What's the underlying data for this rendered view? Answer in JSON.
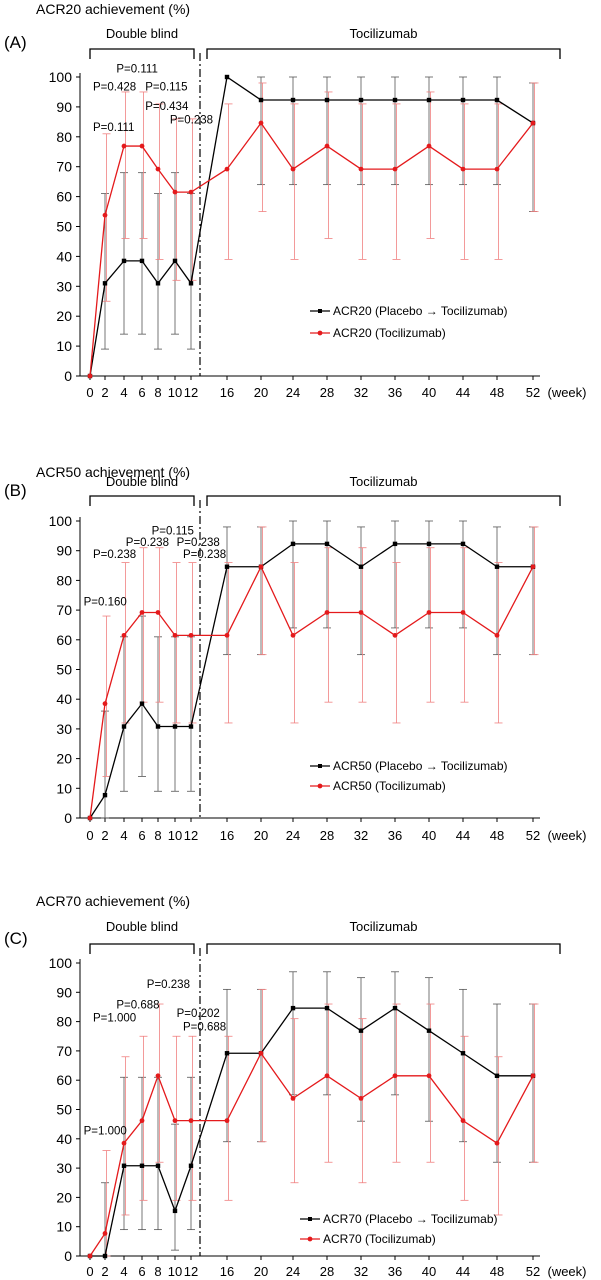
{
  "chart_data": [
    {
      "type": "line",
      "panel_label": "(A)",
      "ylabel": "ACR20 achievement (%)",
      "xunit": "(week)",
      "ylim": [
        0,
        100
      ],
      "yticks": [
        0,
        10,
        20,
        30,
        40,
        50,
        60,
        70,
        80,
        90,
        100
      ],
      "x": [
        0,
        2,
        4,
        6,
        8,
        10,
        12,
        16,
        20,
        24,
        28,
        32,
        36,
        40,
        44,
        48,
        52
      ],
      "xtick_labels": [
        "0",
        "2",
        "4",
        "6",
        "8",
        "10",
        "12",
        "16",
        "20",
        "24",
        "28",
        "32",
        "36",
        "40",
        "44",
        "48",
        "52"
      ],
      "phases": [
        {
          "label": "Double blind",
          "from": 0,
          "to": 12
        },
        {
          "label": "Tocilizumab",
          "from": 12,
          "to": 52
        }
      ],
      "series": [
        {
          "name": "ACR20 (Placebo → Tocilizumab)",
          "color": "#000000",
          "values": [
            0,
            31,
            38.5,
            38.5,
            31,
            38.5,
            31,
            100,
            92.3,
            92.3,
            92.3,
            92.3,
            92.3,
            92.3,
            92.3,
            92.3,
            84.6
          ],
          "err_low": [
            0,
            9,
            14,
            14,
            9,
            14,
            9,
            100,
            64,
            64,
            64,
            64,
            64,
            64,
            64,
            64,
            55
          ],
          "err_high": [
            0,
            61,
            68,
            68,
            61,
            68,
            61,
            100,
            100,
            100,
            100,
            100,
            100,
            100,
            100,
            100,
            98
          ]
        },
        {
          "name": "ACR20 (Tocilizumab)",
          "color": "#e41a1c",
          "values": [
            0,
            53.8,
            76.9,
            76.9,
            69.2,
            61.5,
            61.5,
            69.2,
            84.6,
            69.2,
            76.9,
            69.2,
            69.2,
            76.9,
            69.2,
            69.2,
            84.6
          ],
          "err_low": [
            0,
            25,
            46,
            46,
            39,
            32,
            32,
            39,
            55,
            39,
            46,
            39,
            39,
            46,
            39,
            39,
            55
          ],
          "err_high": [
            0,
            81,
            95,
            95,
            91,
            86,
            86,
            91,
            98,
            91,
            95,
            91,
            91,
            95,
            91,
            91,
            98
          ]
        }
      ],
      "pvalues": [
        {
          "text": "P=0.111",
          "x": 0.4,
          "y": 82
        },
        {
          "text": "P=0.428",
          "x": 0.4,
          "y": 95.5
        },
        {
          "text": "P=0.111",
          "x": 3.2,
          "y": 101.5
        },
        {
          "text": "P=0.115",
          "x": 6.4,
          "y": 95.5
        },
        {
          "text": "P=0.434",
          "x": 6.4,
          "y": 89
        },
        {
          "text": "P=0.238",
          "x": 9.4,
          "y": 84.5
        }
      ]
    },
    {
      "type": "line",
      "panel_label": "(B)",
      "ylabel": "ACR50 achievement (%)",
      "xunit": "(week)",
      "ylim": [
        0,
        100
      ],
      "yticks": [
        0,
        10,
        20,
        30,
        40,
        50,
        60,
        70,
        80,
        90,
        100
      ],
      "x": [
        0,
        2,
        4,
        6,
        8,
        10,
        12,
        16,
        20,
        24,
        28,
        32,
        36,
        40,
        44,
        48,
        52
      ],
      "xtick_labels": [
        "0",
        "2",
        "4",
        "6",
        "8",
        "10",
        "12",
        "16",
        "20",
        "24",
        "28",
        "32",
        "36",
        "40",
        "44",
        "48",
        "52"
      ],
      "phases": [
        {
          "label": "Double blind",
          "from": 0,
          "to": 12
        },
        {
          "label": "Tocilizumab",
          "from": 12,
          "to": 52
        }
      ],
      "series": [
        {
          "name": "ACR50 (Placebo → Tocilizumab)",
          "color": "#000000",
          "values": [
            0,
            7.7,
            30.8,
            38.5,
            30.8,
            30.8,
            30.8,
            84.6,
            84.6,
            92.3,
            92.3,
            84.6,
            92.3,
            92.3,
            92.3,
            84.6,
            84.6
          ],
          "err_low": [
            0,
            0,
            9,
            14,
            9,
            9,
            9,
            55,
            55,
            64,
            64,
            55,
            64,
            64,
            64,
            55,
            55
          ],
          "err_high": [
            0,
            36,
            61,
            68,
            61,
            61,
            61,
            98,
            98,
            100,
            100,
            98,
            100,
            100,
            100,
            98,
            98
          ],
          "err_high_only": false
        },
        {
          "name": "ACR50 (Tocilizumab)",
          "color": "#e41a1c",
          "values": [
            0,
            38.5,
            61.5,
            69.2,
            69.2,
            61.5,
            61.5,
            61.5,
            84.6,
            61.5,
            69.2,
            69.2,
            61.5,
            69.2,
            69.2,
            61.5,
            84.6
          ],
          "err_low": [
            0,
            14,
            32,
            39,
            39,
            32,
            32,
            32,
            55,
            32,
            39,
            39,
            32,
            39,
            39,
            32,
            55
          ],
          "err_high": [
            0,
            68,
            86,
            91,
            91,
            86,
            86,
            86,
            98,
            86,
            91,
            91,
            86,
            91,
            91,
            86,
            98
          ]
        }
      ],
      "pvalues": [
        {
          "text": "P=0.160",
          "x": -0.8,
          "y": 71.5
        },
        {
          "text": "P=0.238",
          "x": 0.4,
          "y": 87.5
        },
        {
          "text": "P=0.238",
          "x": 4.2,
          "y": 91.5
        },
        {
          "text": "P=0.115",
          "x": 7.2,
          "y": 95.5
        },
        {
          "text": "P=0.238",
          "x": 10.2,
          "y": 91.5
        },
        {
          "text": "P=0.238",
          "x": 11,
          "y": 87.5
        }
      ]
    },
    {
      "type": "line",
      "panel_label": "(C)",
      "ylabel": "ACR70 achievement (%)",
      "xunit": "(week)",
      "ylim": [
        0,
        100
      ],
      "yticks": [
        0,
        10,
        20,
        30,
        40,
        50,
        60,
        70,
        80,
        90,
        100
      ],
      "x": [
        0,
        2,
        4,
        6,
        8,
        10,
        12,
        16,
        20,
        24,
        28,
        32,
        36,
        40,
        44,
        48,
        52
      ],
      "xtick_labels": [
        "0",
        "2",
        "4",
        "6",
        "8",
        "10",
        "12",
        "16",
        "20",
        "24",
        "28",
        "32",
        "36",
        "40",
        "44",
        "48",
        "52"
      ],
      "phases": [
        {
          "label": "Double blind",
          "from": 0,
          "to": 12
        },
        {
          "label": "Tocilizumab",
          "from": 12,
          "to": 52
        }
      ],
      "series": [
        {
          "name": "ACR70 (Placebo → Tocilizumab)",
          "color": "#000000",
          "values": [
            0,
            0,
            30.8,
            30.8,
            30.8,
            15.4,
            30.8,
            69.2,
            69.2,
            84.6,
            84.6,
            76.9,
            84.6,
            76.9,
            69.2,
            61.5,
            61.5
          ],
          "err_low": [
            0,
            0,
            9,
            9,
            9,
            2,
            9,
            39,
            39,
            55,
            55,
            46,
            55,
            46,
            39,
            32,
            32
          ],
          "err_high": [
            0,
            25,
            61,
            61,
            61,
            45,
            61,
            91,
            91,
            97,
            97,
            95,
            97,
            95,
            91,
            86,
            86
          ]
        },
        {
          "name": "ACR70 (Tocilizumab)",
          "color": "#e41a1c",
          "values": [
            0,
            7.7,
            38.5,
            46.2,
            61.5,
            46.2,
            46.2,
            46.2,
            69.2,
            53.8,
            61.5,
            53.8,
            61.5,
            61.5,
            46.2,
            38.5,
            61.5
          ],
          "err_low": [
            0,
            0,
            14,
            19,
            32,
            19,
            19,
            19,
            39,
            25,
            32,
            25,
            32,
            32,
            19,
            14,
            32
          ],
          "err_high": [
            0,
            36,
            68,
            75,
            86,
            75,
            75,
            75,
            91,
            81,
            86,
            81,
            86,
            86,
            75,
            68,
            86
          ]
        }
      ],
      "pvalues": [
        {
          "text": "P=1.000",
          "x": -0.8,
          "y": 41.5
        },
        {
          "text": "P=1.000",
          "x": 0.4,
          "y": 80
        },
        {
          "text": "P=0.688",
          "x": 3.2,
          "y": 84.5
        },
        {
          "text": "P=0.238",
          "x": 6.6,
          "y": 91.5
        },
        {
          "text": "P=0.202",
          "x": 10.2,
          "y": 81.5
        },
        {
          "text": "P=0.688",
          "x": 11,
          "y": 77
        }
      ]
    }
  ]
}
